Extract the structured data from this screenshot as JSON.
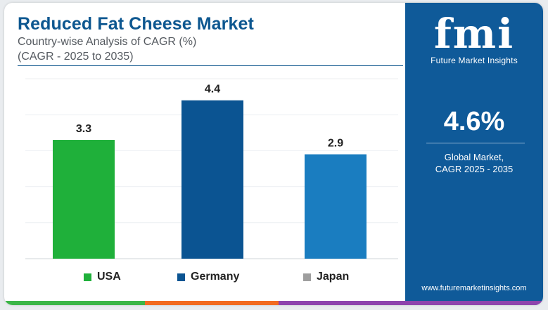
{
  "header": {
    "title": "Reduced Fat Cheese Market",
    "subtitle": "Country-wise Analysis of CAGR (%)",
    "subtitle2": "(CAGR - 2025 to 2035)"
  },
  "chart_data": {
    "type": "bar",
    "categories": [
      "USA",
      "Germany",
      "Japan"
    ],
    "values": [
      3.3,
      4.4,
      2.9
    ],
    "colors": [
      "#1fb03a",
      "#0b5492",
      "#1a7dc0"
    ],
    "legend_swatch_colors": [
      "#1fb03a",
      "#0b5492",
      "#9e9e9e"
    ],
    "ylim": [
      0,
      5
    ],
    "grid": true,
    "legend_position": "bottom"
  },
  "side_panel": {
    "logo_letters": "fmi",
    "logo_name": "Future Market Insights",
    "stat_value": "4.6%",
    "stat_label_line1": "Global Market,",
    "stat_label_line2": "CAGR 2025 - 2035",
    "website": "www.futuremarketinsights.com",
    "background_color": "#0f5a99"
  },
  "bottom_strip_colors": [
    "#3cb648",
    "#f26b21",
    "#8e44ad"
  ]
}
